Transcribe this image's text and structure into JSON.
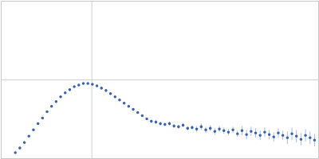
{
  "chart_data": {
    "type": "scatter",
    "color": "#3a62b0",
    "marker": "circle",
    "grid": true,
    "tick_labels": false,
    "xlim": [
      0,
      0.35
    ],
    "xticks": [
      0.1
    ],
    "ylim": [
      0,
      2
    ],
    "yticks": [
      1
    ],
    "x": [
      0.016,
      0.021,
      0.026,
      0.031,
      0.036,
      0.041,
      0.046,
      0.051,
      0.056,
      0.061,
      0.066,
      0.071,
      0.076,
      0.081,
      0.086,
      0.091,
      0.096,
      0.101,
      0.106,
      0.111,
      0.116,
      0.121,
      0.126,
      0.131,
      0.136,
      0.141,
      0.146,
      0.151,
      0.156,
      0.161,
      0.166,
      0.171,
      0.176,
      0.181,
      0.186,
      0.191,
      0.196,
      0.201,
      0.206,
      0.211,
      0.216,
      0.221,
      0.226,
      0.231,
      0.236,
      0.241,
      0.246,
      0.251,
      0.256,
      0.261,
      0.266,
      0.271,
      0.276,
      0.281,
      0.286,
      0.291,
      0.296,
      0.301,
      0.306,
      0.311,
      0.316,
      0.321,
      0.326,
      0.331,
      0.336,
      0.341,
      0.346
    ],
    "values": [
      0.07,
      0.13,
      0.2,
      0.28,
      0.36,
      0.44,
      0.51,
      0.59,
      0.66,
      0.72,
      0.78,
      0.83,
      0.87,
      0.91,
      0.93,
      0.95,
      0.95,
      0.94,
      0.92,
      0.89,
      0.86,
      0.82,
      0.78,
      0.74,
      0.7,
      0.66,
      0.62,
      0.58,
      0.54,
      0.5,
      0.47,
      0.46,
      0.44,
      0.43,
      0.44,
      0.41,
      0.4,
      0.42,
      0.38,
      0.39,
      0.37,
      0.4,
      0.36,
      0.38,
      0.34,
      0.37,
      0.35,
      0.33,
      0.36,
      0.31,
      0.35,
      0.3,
      0.34,
      0.32,
      0.29,
      0.33,
      0.3,
      0.27,
      0.32,
      0.29,
      0.26,
      0.31,
      0.28,
      0.24,
      0.29,
      0.26,
      0.23
    ],
    "errors": [
      0.01,
      0.01,
      0.01,
      0.01,
      0.01,
      0.01,
      0.01,
      0.01,
      0.01,
      0.01,
      0.01,
      0.01,
      0.01,
      0.01,
      0.01,
      0.01,
      0.01,
      0.01,
      0.01,
      0.01,
      0.015,
      0.015,
      0.015,
      0.015,
      0.015,
      0.015,
      0.015,
      0.015,
      0.015,
      0.015,
      0.025,
      0.025,
      0.025,
      0.025,
      0.025,
      0.025,
      0.025,
      0.025,
      0.025,
      0.025,
      0.04,
      0.04,
      0.04,
      0.04,
      0.04,
      0.04,
      0.04,
      0.04,
      0.04,
      0.04,
      0.06,
      0.06,
      0.06,
      0.06,
      0.06,
      0.06,
      0.06,
      0.06,
      0.06,
      0.06,
      0.08,
      0.08,
      0.08,
      0.08,
      0.08,
      0.08,
      0.08
    ]
  }
}
